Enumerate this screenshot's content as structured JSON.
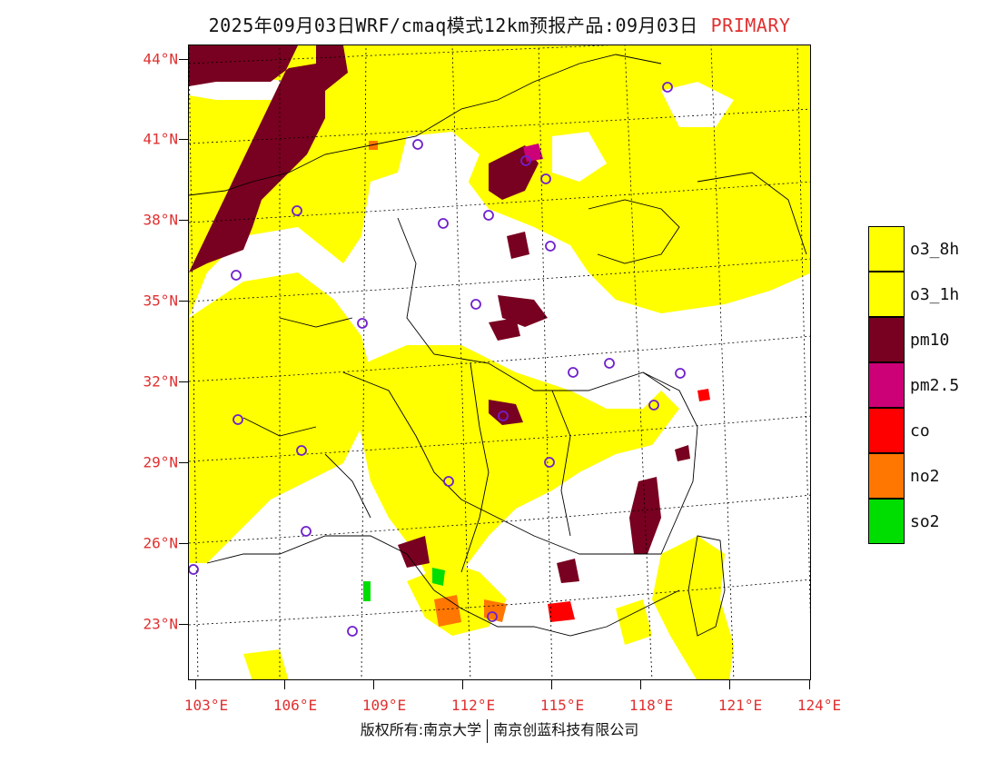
{
  "title": {
    "main": "2025年09月03日WRF/cmaq模式12km预报产品:09月03日",
    "tag": "PRIMARY",
    "tag_color": "#e03030"
  },
  "map": {
    "lat_labels": [
      "44°N",
      "41°N",
      "38°N",
      "35°N",
      "32°N",
      "29°N",
      "26°N",
      "23°N"
    ],
    "lon_labels": [
      "103°E",
      "106°E",
      "109°E",
      "112°E",
      "115°E",
      "118°E",
      "121°E",
      "124°E"
    ],
    "lat_range": [
      21,
      44.6
    ],
    "lon_range": [
      102.7,
      124
    ]
  },
  "legend": [
    {
      "label": "o3_8h",
      "color": "#ffff00"
    },
    {
      "label": "o3_1h",
      "color": "#ffff00"
    },
    {
      "label": "pm10",
      "color": "#780020"
    },
    {
      "label": "pm2.5",
      "color": "#cc0077"
    },
    {
      "label": "co",
      "color": "#ff0000"
    },
    {
      "label": "no2",
      "color": "#ff7700"
    },
    {
      "label": "so2",
      "color": "#00dd00"
    }
  ],
  "footer": {
    "left": "版权所有:南京大学",
    "right": "南京创蓝科技有限公司"
  }
}
